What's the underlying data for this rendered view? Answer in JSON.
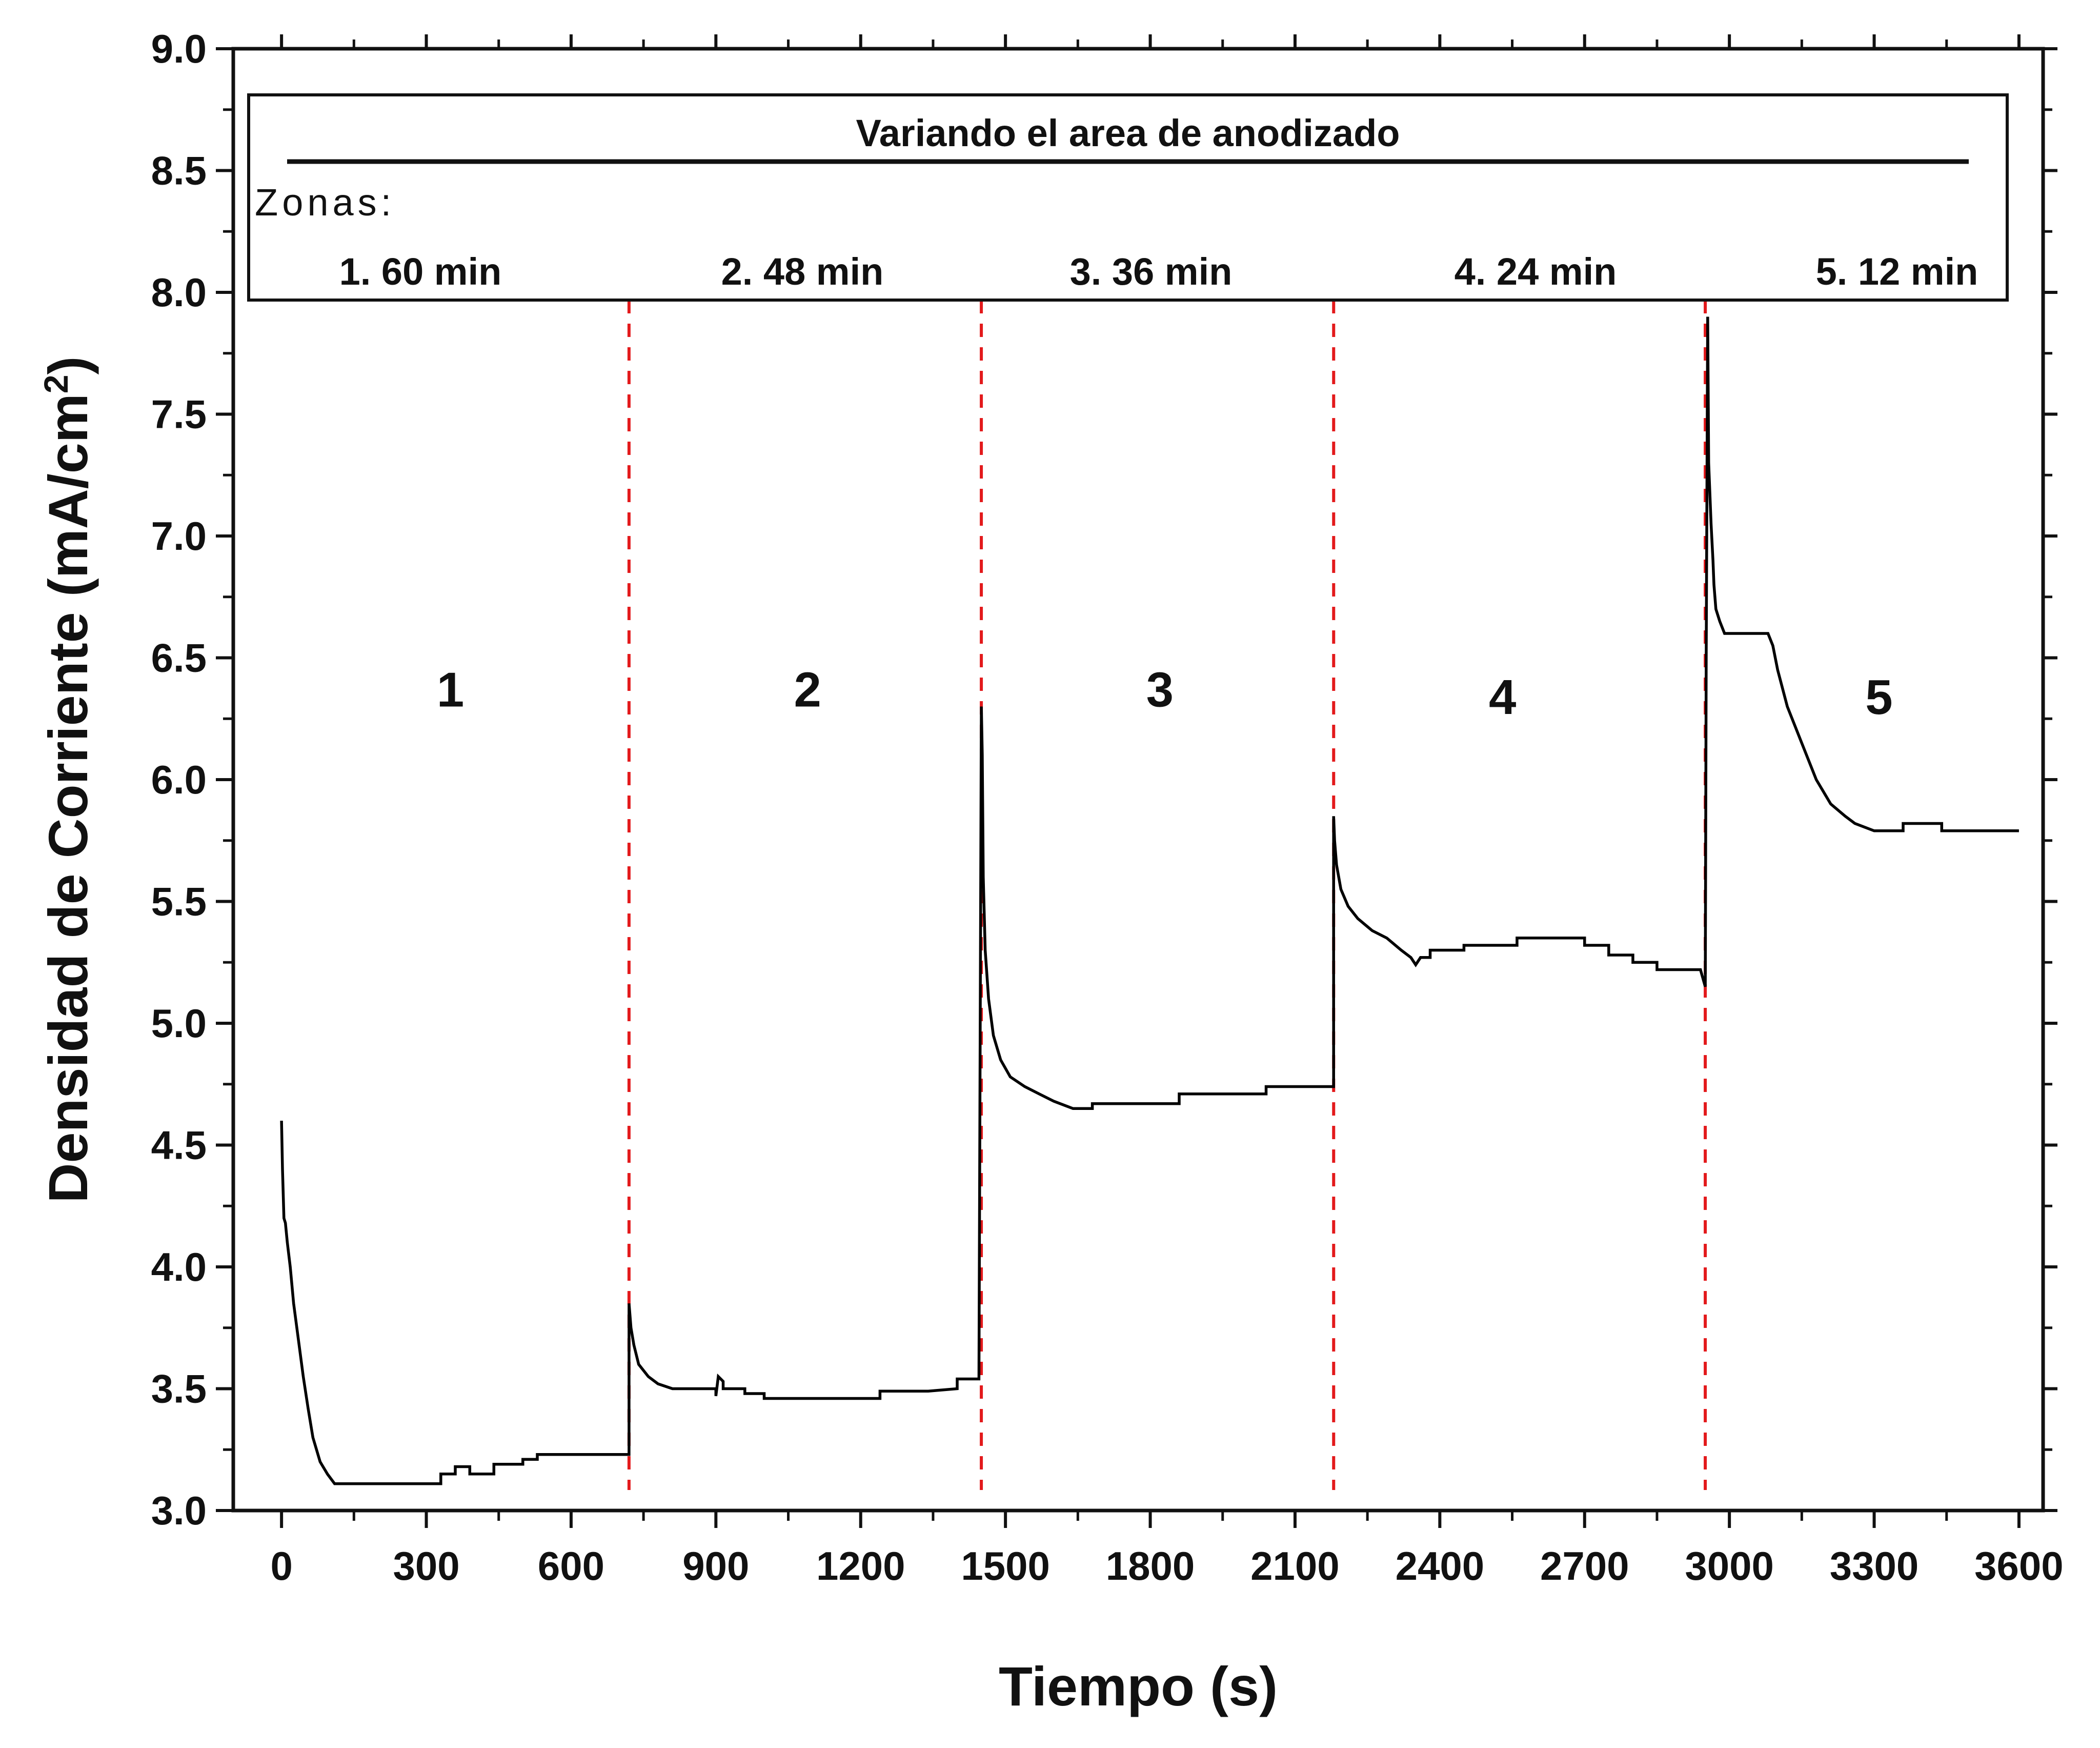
{
  "chart_data": {
    "type": "line",
    "title": "",
    "xlabel": "Tiempo (s)",
    "ylabel_main": "Densidad de Corriente (mA/cm",
    "ylabel_sup": "2",
    "ylabel_close": ")",
    "xlim": [
      -100,
      3650
    ],
    "ylim": [
      3.0,
      9.0
    ],
    "x_ticks": [
      0,
      300,
      600,
      900,
      1200,
      1500,
      1800,
      2100,
      2400,
      2700,
      3000,
      3300,
      3600
    ],
    "x_tick_labels": [
      "0",
      "300",
      "600",
      "900",
      "1200",
      "1500",
      "1800",
      "2100",
      "2400",
      "2700",
      "3000",
      "3300",
      "3600"
    ],
    "y_ticks": [
      3.0,
      3.5,
      4.0,
      4.5,
      5.0,
      5.5,
      6.0,
      6.5,
      7.0,
      7.5,
      8.0,
      8.5,
      9.0
    ],
    "y_tick_labels": [
      "3.0",
      "3.5",
      "4.0",
      "4.5",
      "5.0",
      "5.5",
      "6.0",
      "6.5",
      "7.0",
      "7.5",
      "8.0",
      "8.5",
      "9.0"
    ],
    "grid": false,
    "line_color": "#000000",
    "divider_color": "#e31a1c",
    "zone_boundaries": [
      720,
      1450,
      2180,
      2950
    ],
    "legend": {
      "placement": "top",
      "title": "Variando el area de anodizado",
      "zones_label": "Zonas:",
      "entries": [
        "1.  60 min",
        "2.  48 min",
        "3.  36 min",
        "4. 24 min",
        "5.  12 min"
      ]
    },
    "zone_labels": [
      {
        "text": "1",
        "x": 350,
        "y": 6.3
      },
      {
        "text": "2",
        "x": 1090,
        "y": 6.3
      },
      {
        "text": "3",
        "x": 1820,
        "y": 6.3
      },
      {
        "text": "4",
        "x": 2530,
        "y": 6.27
      },
      {
        "text": "5",
        "x": 3310,
        "y": 6.27
      }
    ],
    "series": [
      {
        "x": [
          0,
          2,
          5,
          8,
          12,
          18,
          25,
          35,
          45,
          55,
          65,
          80,
          95,
          110,
          120,
          200,
          300,
          330,
          330,
          360,
          360,
          390,
          390,
          440,
          440,
          500,
          500,
          530,
          530,
          600,
          720,
          720,
          724,
          730,
          740,
          760,
          780,
          810,
          850,
          900,
          900,
          905,
          915,
          915,
          960,
          960,
          1000,
          1000,
          1100,
          1200,
          1240,
          1240,
          1340,
          1400,
          1400,
          1445,
          1450,
          1452,
          1454,
          1458,
          1465,
          1475,
          1490,
          1510,
          1540,
          1570,
          1600,
          1640,
          1680,
          1680,
          1700,
          1800,
          1860,
          1860,
          2000,
          2040,
          2040,
          2180,
          2180,
          2182,
          2186,
          2195,
          2210,
          2230,
          2260,
          2290,
          2320,
          2340,
          2350,
          2360,
          2380,
          2380,
          2420,
          2450,
          2450,
          2560,
          2560,
          2700,
          2700,
          2750,
          2750,
          2800,
          2800,
          2850,
          2850,
          2940,
          2950,
          2952,
          2955,
          2957,
          2962,
          2966,
          2968,
          2972,
          2980,
          2990,
          3000,
          3010,
          3020,
          3050,
          3080,
          3090,
          3100,
          3120,
          3150,
          3180,
          3210,
          3240,
          3260,
          3300,
          3360,
          3360,
          3440,
          3440,
          3490,
          3600
        ],
        "y": [
          4.6,
          4.4,
          4.2,
          4.18,
          4.1,
          4.0,
          3.85,
          3.7,
          3.55,
          3.42,
          3.3,
          3.2,
          3.15,
          3.11,
          3.11,
          3.11,
          3.11,
          3.11,
          3.15,
          3.15,
          3.18,
          3.18,
          3.15,
          3.15,
          3.19,
          3.19,
          3.21,
          3.21,
          3.23,
          3.23,
          3.23,
          3.85,
          3.75,
          3.68,
          3.6,
          3.55,
          3.52,
          3.5,
          3.5,
          3.5,
          3.47,
          3.55,
          3.53,
          3.5,
          3.5,
          3.48,
          3.48,
          3.46,
          3.46,
          3.46,
          3.46,
          3.49,
          3.49,
          3.5,
          3.54,
          3.54,
          6.3,
          6.1,
          5.6,
          5.3,
          5.1,
          4.95,
          4.85,
          4.78,
          4.74,
          4.71,
          4.68,
          4.65,
          4.65,
          4.67,
          4.67,
          4.67,
          4.67,
          4.71,
          4.71,
          4.71,
          4.74,
          4.74,
          5.85,
          5.75,
          5.65,
          5.55,
          5.48,
          5.43,
          5.38,
          5.35,
          5.3,
          5.27,
          5.24,
          5.27,
          5.27,
          5.3,
          5.3,
          5.3,
          5.32,
          5.32,
          5.35,
          5.35,
          5.32,
          5.32,
          5.28,
          5.28,
          5.25,
          5.25,
          5.22,
          5.22,
          5.15,
          6.5,
          7.9,
          7.3,
          7.05,
          6.9,
          6.8,
          6.7,
          6.65,
          6.6,
          6.6,
          6.6,
          6.6,
          6.6,
          6.6,
          6.55,
          6.45,
          6.3,
          6.15,
          6.0,
          5.9,
          5.85,
          5.82,
          5.79,
          5.79,
          5.82,
          5.82,
          5.79,
          5.79,
          5.79
        ]
      }
    ]
  }
}
